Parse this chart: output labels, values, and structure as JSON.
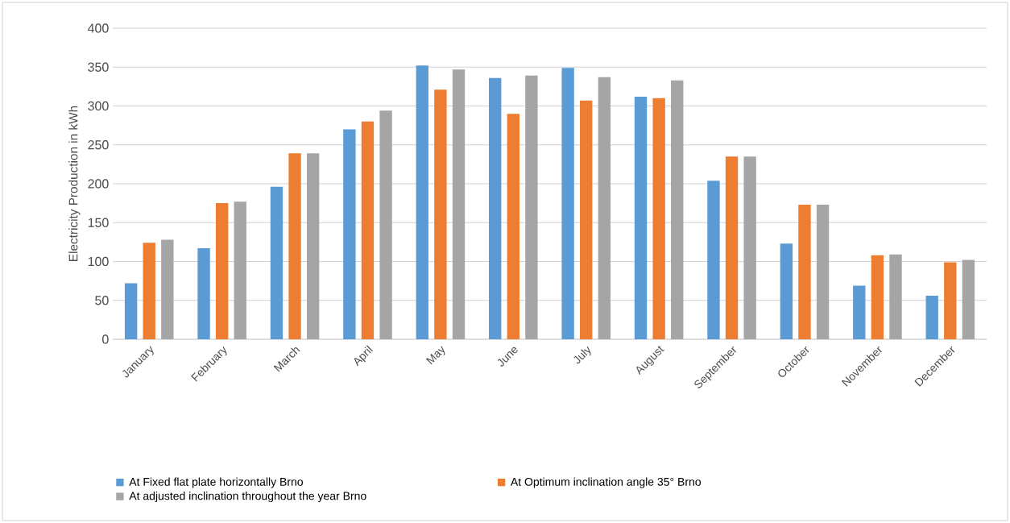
{
  "chart_data": {
    "type": "bar",
    "ylabel": "Electricity Production in kWh",
    "categories": [
      "January",
      "February",
      "March",
      "April",
      "May",
      "June",
      "July",
      "August",
      "September",
      "October",
      "November",
      "December"
    ],
    "series": [
      {
        "name": "At Fixed flat plate horizontally Brno",
        "color": "#5b9bd5",
        "values": [
          72,
          117,
          196,
          270,
          352,
          336,
          349,
          312,
          204,
          123,
          69,
          56
        ]
      },
      {
        "name": "At Optimum inclination angle 35° Brno",
        "color": "#ed7d31",
        "values": [
          124,
          175,
          239,
          280,
          321,
          290,
          307,
          310,
          235,
          173,
          108,
          99
        ]
      },
      {
        "name": "At adjusted inclination throughout the year Brno",
        "color": "#a5a5a5",
        "values": [
          128,
          177,
          239,
          294,
          347,
          339,
          337,
          333,
          235,
          173,
          109,
          102
        ]
      }
    ],
    "ylim": [
      0,
      400
    ],
    "yticks": [
      0,
      50,
      100,
      150,
      200,
      250,
      300,
      350,
      400
    ],
    "grid": "y",
    "legend": "bottom"
  }
}
